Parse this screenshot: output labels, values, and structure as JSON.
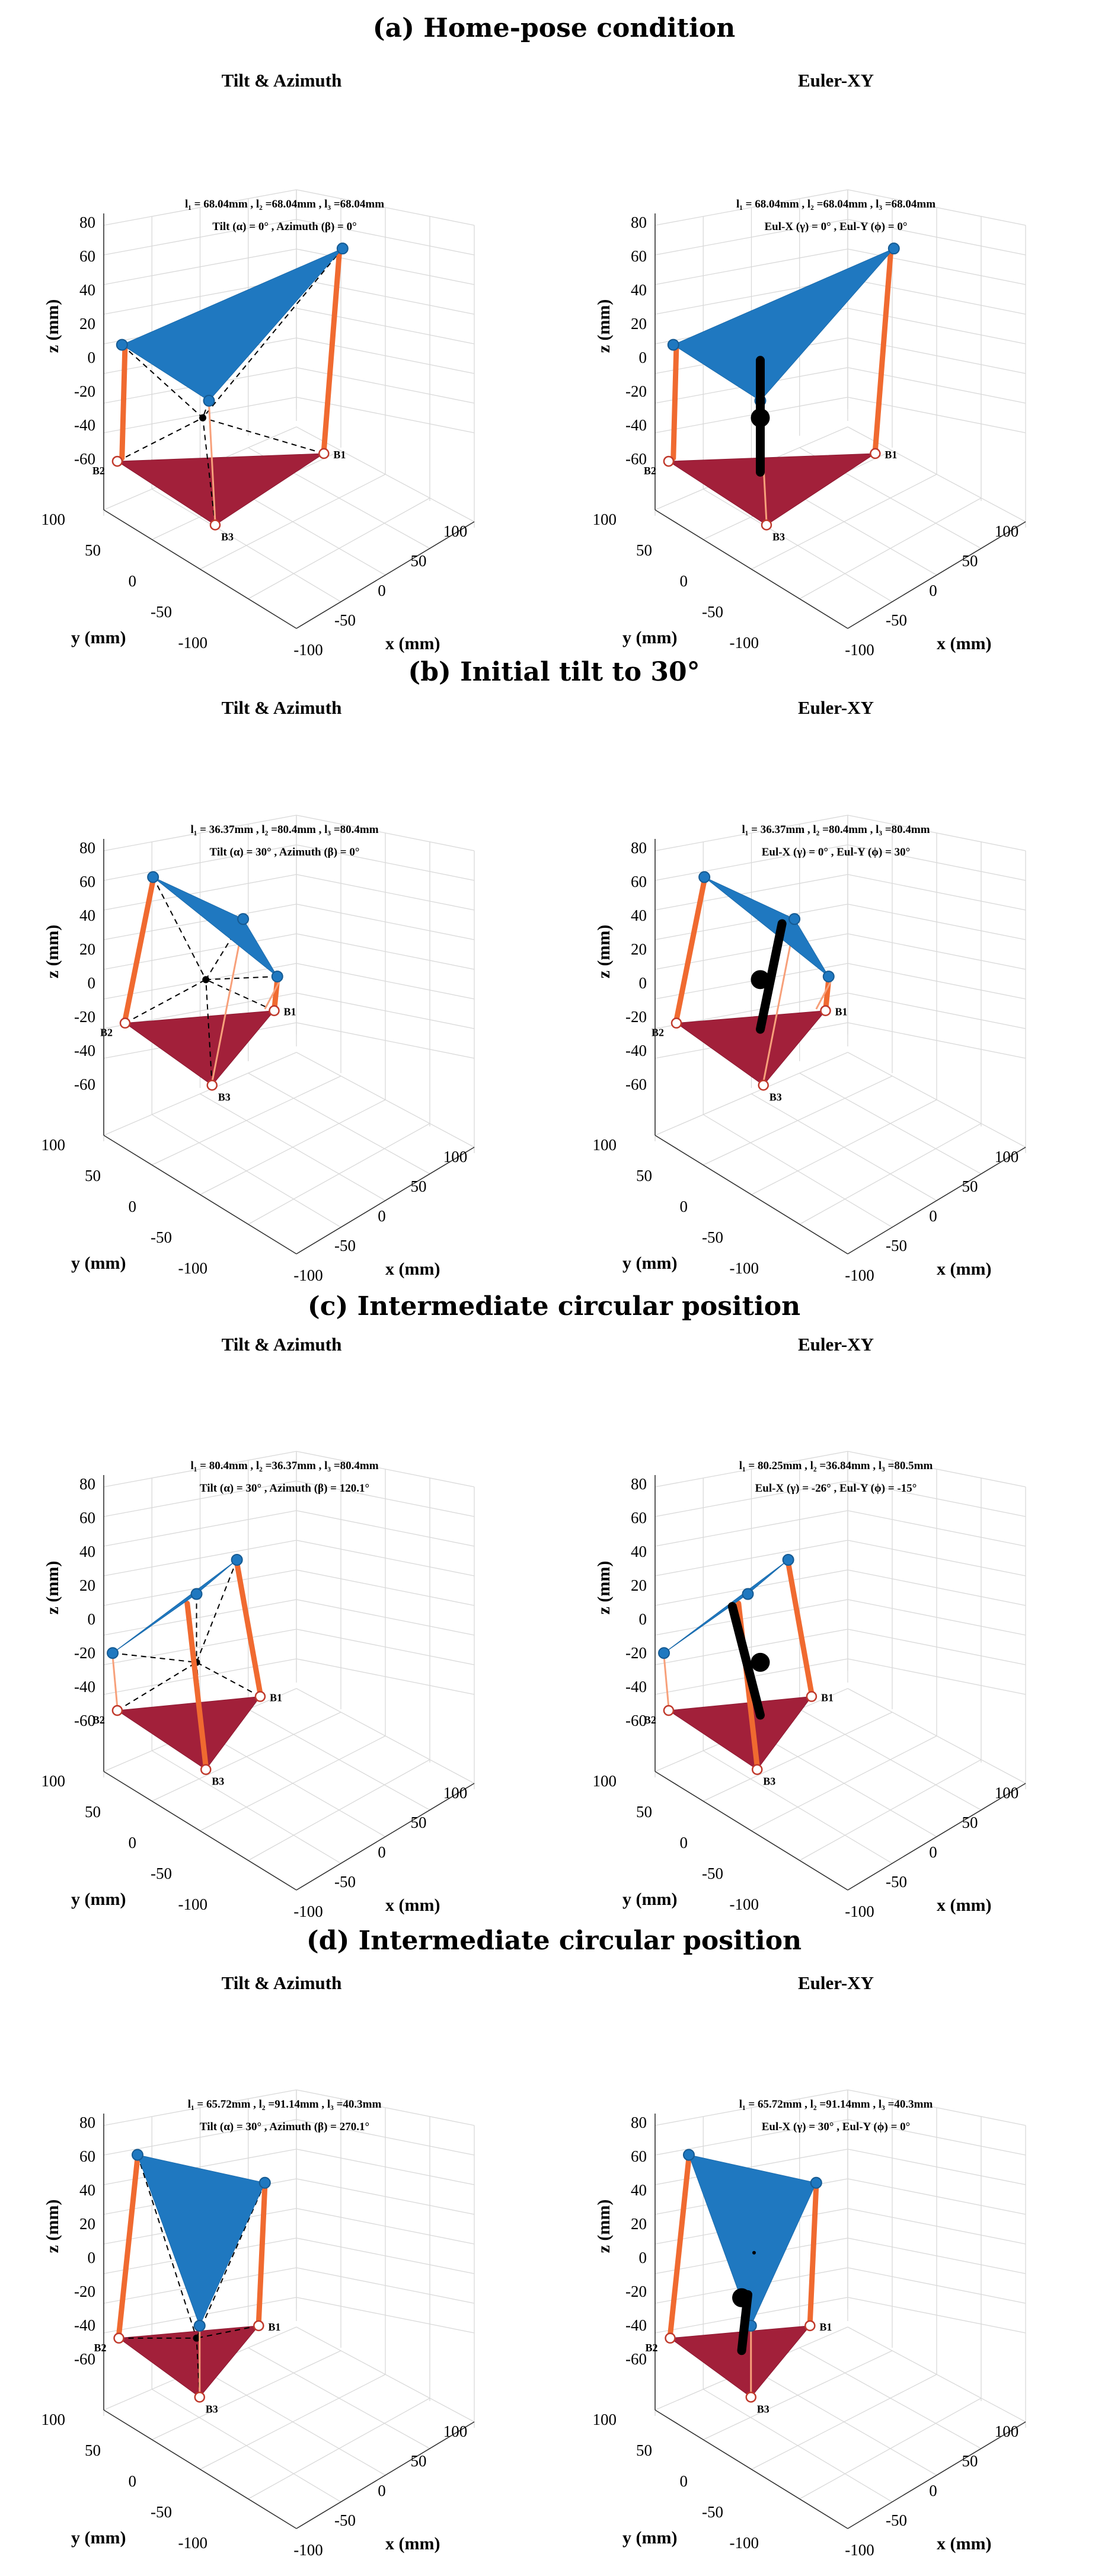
{
  "figure": {
    "sections": [
      {
        "id": "a",
        "title": "(a) Home-pose condition",
        "panels": [
          {
            "title": "Tilt & Azimuth",
            "mode": "tilt",
            "line1": "l₁ = 68.04mm , l₂ =68.04mm , l₃ =68.04mm",
            "line2": "Tilt (α) =  0° , Azimuth (β) =  0°"
          },
          {
            "title": "Euler-XY",
            "mode": "euler",
            "line1": "l₁ = 68.04mm , l₂ =68.04mm , l₃ =68.04mm",
            "line2": "Eul-X (γ) =  0° , Eul-Y (ϕ) =  0°"
          }
        ]
      },
      {
        "id": "b",
        "title": "(b) Initial tilt to 30°",
        "panels": [
          {
            "title": "Tilt & Azimuth",
            "mode": "tilt",
            "line1": "l₁ = 36.37mm , l₂ =80.4mm , l₃ =80.4mm",
            "line2": "Tilt (α) =  30° , Azimuth (β) =  0°"
          },
          {
            "title": "Euler-XY",
            "mode": "euler",
            "line1": "l₁ = 36.37mm , l₂ =80.4mm , l₃ =80.4mm",
            "line2": "Eul-X (γ) =  0° , Eul-Y (ϕ) =  30°"
          }
        ]
      },
      {
        "id": "c",
        "title": "(c) Intermediate circular position",
        "panels": [
          {
            "title": "Tilt & Azimuth",
            "mode": "tilt",
            "line1": "l₁ = 80.4mm , l₂ =36.37mm , l₃ =80.4mm",
            "line2": "Tilt (α) =  30° , Azimuth (β) =  120.1°"
          },
          {
            "title": "Euler-XY",
            "mode": "euler",
            "line1": "l₁ = 80.25mm , l₂ =36.84mm , l₃ =80.5mm",
            "line2": "Eul-X (γ) =  -26° , Eul-Y (ϕ) =  -15°"
          }
        ]
      },
      {
        "id": "d",
        "title": "(d) Intermediate circular position",
        "panels": [
          {
            "title": "Tilt & Azimuth",
            "mode": "tilt",
            "line1": "l₁ = 65.72mm , l₂ =91.14mm , l₃ =40.3mm",
            "line2": "Tilt (α) =  30° , Azimuth (β) =  270.1°"
          },
          {
            "title": "Euler-XY",
            "mode": "euler",
            "line1": "l₁ = 65.72mm , l₂ =91.14mm , l₃ =40.3mm",
            "line2": "Eul-X (γ) =  30° , Eul-Y (ϕ) =  0°"
          }
        ]
      }
    ],
    "axes": {
      "z_label": "z (mm)",
      "y_label": "y (mm)",
      "x_label": "x (mm)",
      "z_ticks": [
        "80",
        "60",
        "40",
        "20",
        "0",
        "-20",
        "-40",
        "-60"
      ],
      "y_ticks": [
        "100",
        "50",
        "0",
        "-50",
        "-100"
      ],
      "x_ticks": [
        "-100",
        "-50",
        "0",
        "50",
        "100"
      ]
    },
    "base_labels": [
      "B1",
      "B2",
      "B3"
    ],
    "colors": {
      "platform": "#1f78c0",
      "base": "#a2203a",
      "legs": "#f06a30",
      "rod": "#000000"
    }
  }
}
